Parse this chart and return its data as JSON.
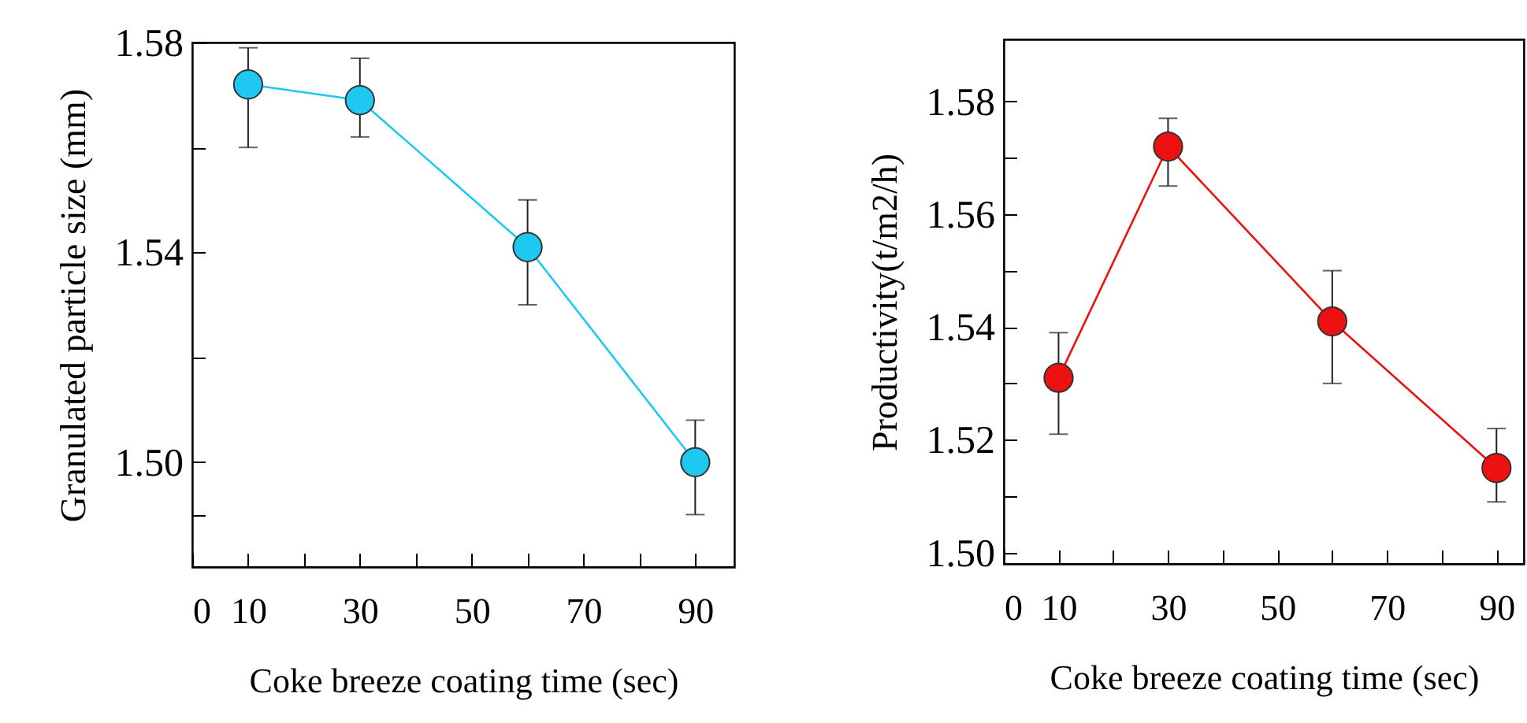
{
  "chart_data": [
    {
      "type": "line",
      "xlabel": "Coke breeze coating time (sec)",
      "ylabel": "Granulated particle size (mm)",
      "x": [
        10,
        30,
        60,
        90
      ],
      "marker": "circle",
      "line_style": "solid",
      "grid": false,
      "series": [
        {
          "color": "#1ec8f0",
          "values": [
            1.572,
            1.569,
            1.541,
            1.5
          ],
          "errors": [
            [
              1.56,
              1.579
            ],
            [
              1.562,
              1.577
            ],
            [
              1.53,
              1.55
            ],
            [
              1.49,
              1.508
            ]
          ]
        }
      ],
      "xlim": [
        0,
        97
      ],
      "xticks": [
        0,
        10,
        {
          "value": 20,
          "label": null
        },
        30,
        {
          "value": 40,
          "label": null
        },
        50,
        {
          "value": 60,
          "label": null
        },
        70,
        {
          "value": 80,
          "label": null
        },
        90
      ],
      "ylim": [
        1.48,
        1.58
      ],
      "yticks": [
        {
          "value": 1.49,
          "label": null
        },
        {
          "value": 1.5,
          "label": "1.50"
        },
        {
          "value": 1.52,
          "label": null
        },
        1.54,
        {
          "value": 1.56,
          "label": null
        },
        1.58
      ]
    },
    {
      "type": "line",
      "xlabel": "Coke breeze coating time (sec)",
      "ylabel": "Productivity(t/m2/h)",
      "x": [
        10,
        30,
        60,
        90
      ],
      "marker": "circle",
      "line_style": "solid",
      "grid": false,
      "series": [
        {
          "color": "#ee1111",
          "values": [
            1.531,
            1.572,
            1.541,
            1.515
          ],
          "errors": [
            [
              1.521,
              1.539
            ],
            [
              1.565,
              1.577
            ],
            [
              1.53,
              1.55
            ],
            [
              1.509,
              1.522
            ]
          ]
        }
      ],
      "xlim": [
        0,
        95
      ],
      "xticks": [
        0,
        10,
        {
          "value": 20,
          "label": null
        },
        30,
        {
          "value": 40,
          "label": null
        },
        50,
        {
          "value": 60,
          "label": null
        },
        70,
        {
          "value": 80,
          "label": null
        },
        90
      ],
      "ylim": [
        1.498,
        1.591
      ],
      "yticks": [
        {
          "value": 1.5,
          "label": "1.50"
        },
        {
          "value": 1.51,
          "label": null
        },
        1.52,
        {
          "value": 1.53,
          "label": null
        },
        1.54,
        {
          "value": 1.55,
          "label": null
        },
        1.56,
        {
          "value": 1.57,
          "label": null
        },
        1.58
      ]
    }
  ]
}
